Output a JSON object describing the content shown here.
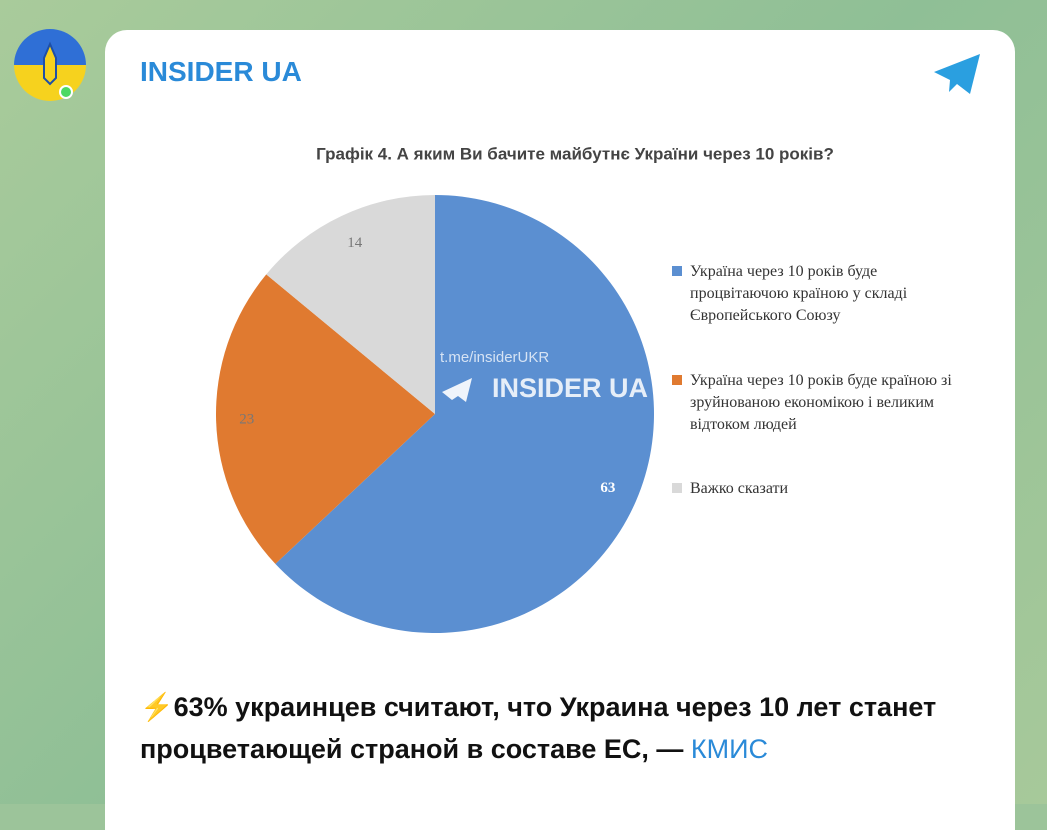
{
  "channel": {
    "name": "INSIDER UA"
  },
  "chart_data": {
    "type": "pie",
    "title": "Графік 4. А яким Ви бачите майбутнє України через 10 років?",
    "categories": [
      "Україна через 10 років буде процвітаючою країною у складі Європейського Союзу",
      "Україна через 10 років буде країною зі зруйнованою економікою і великим відтоком людей",
      "Важко сказати"
    ],
    "values": [
      63,
      23,
      14
    ],
    "colors": [
      "#5b8fd1",
      "#e07a30",
      "#d9d9d9"
    ],
    "legend": "right"
  },
  "watermark": {
    "link": "t.me/insiderUKR",
    "name": "INSIDER UA"
  },
  "caption": {
    "text": "⚡63% украинцев считают, что Украина через 10 лет станет процветающей страной в составе ЕС, — ",
    "link": "КМИС"
  }
}
